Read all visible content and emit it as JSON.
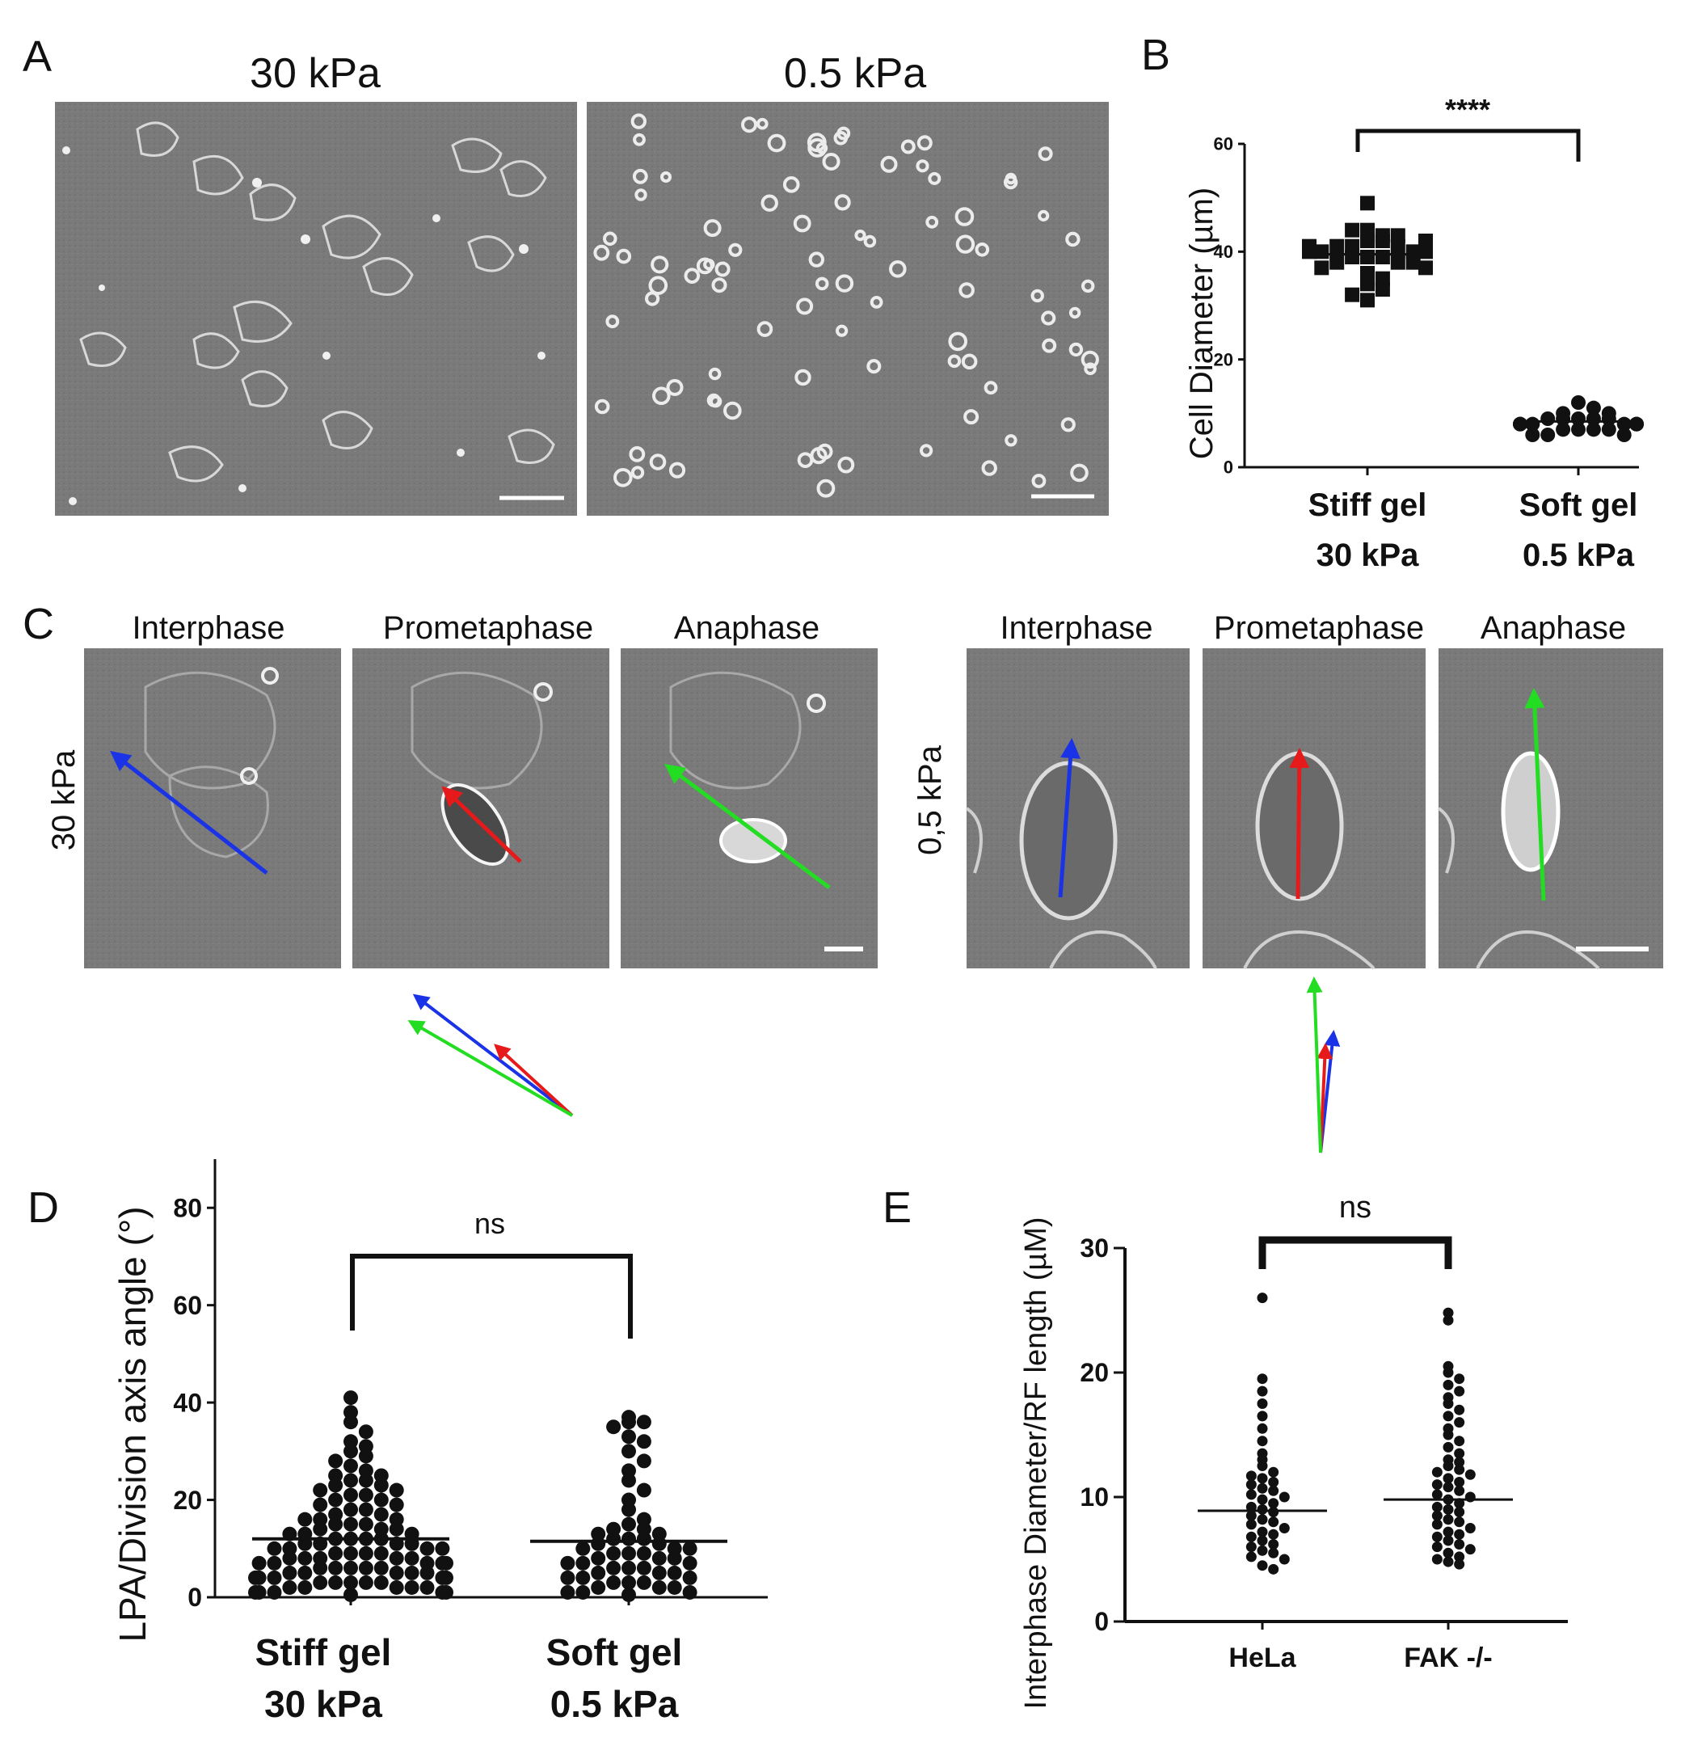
{
  "panels": {
    "A": {
      "letter": "A",
      "titles": [
        "30 kPa",
        "0.5 kPa"
      ]
    },
    "B": {
      "letter": "B",
      "significance": "****",
      "ylabel": "Cell Diameter (µm)",
      "yticks": [
        "0",
        "20",
        "40",
        "60"
      ],
      "groups": [
        [
          "Stiff gel",
          "30 kPa"
        ],
        [
          "Soft gel",
          "0.5 kPa"
        ]
      ]
    },
    "C": {
      "letter": "C",
      "phases": [
        "Interphase",
        "Prometaphase",
        "Anaphase"
      ],
      "row_labels": [
        "30 kPa",
        "0,5 kPa"
      ],
      "arrow_colors": {
        "interphase": "#1a33e6",
        "prometaphase": "#e61a1a",
        "anaphase": "#22dd22"
      }
    },
    "D": {
      "letter": "D",
      "significance": "ns",
      "ylabel": "LPA/Division axis angle (°)",
      "yticks": [
        "0",
        "20",
        "40",
        "60",
        "80"
      ],
      "groups": [
        [
          "Stiff gel",
          "30 kPa"
        ],
        [
          "Soft gel",
          "0.5 kPa"
        ]
      ]
    },
    "E": {
      "letter": "E",
      "significance": "ns",
      "ylabel": "Interphase Diameter/RF length (µM)",
      "yticks": [
        "0",
        "10",
        "20",
        "30"
      ],
      "groups": [
        "HeLa",
        "FAK -/-"
      ]
    }
  },
  "chart_data": [
    {
      "panel": "B",
      "type": "scatter",
      "ylabel": "Cell Diameter (µm)",
      "ylim": [
        0,
        60
      ],
      "categories": [
        "Stiff gel 30 kPa",
        "Soft gel 0.5 kPa"
      ],
      "means": [
        39.5,
        8.5
      ],
      "significance": "****",
      "series": [
        {
          "values": [
            44,
            43,
            42,
            42,
            41,
            41,
            41,
            40,
            40,
            40,
            40,
            39,
            39,
            39,
            38,
            38,
            38,
            37,
            37,
            36,
            35,
            34,
            33,
            32,
            31,
            49,
            44,
            43,
            42,
            41
          ]
        },
        {
          "values": [
            12,
            11,
            10,
            10,
            9,
            9,
            9,
            9,
            9,
            8,
            8,
            8,
            8,
            8,
            8,
            8,
            8,
            7,
            7,
            7,
            7,
            6,
            6,
            6
          ]
        }
      ]
    },
    {
      "panel": "D",
      "type": "scatter",
      "ylabel": "LPA/Division axis angle (°)",
      "ylim": [
        0,
        90
      ],
      "categories": [
        "Stiff gel 30 kPa",
        "Soft gel 0.5 kPa"
      ],
      "means": [
        12,
        11.5
      ],
      "significance": "ns",
      "series": [
        {
          "values": [
            41,
            38,
            36,
            34,
            32,
            31,
            30,
            29,
            28,
            27,
            26,
            25,
            25,
            24,
            24,
            23,
            23,
            22,
            22,
            21,
            21,
            20,
            20,
            19,
            19,
            18,
            18,
            17,
            17,
            16,
            16,
            16,
            15,
            15,
            15,
            14,
            14,
            14,
            13,
            13,
            13,
            12,
            12,
            12,
            12,
            11,
            11,
            11,
            11,
            10,
            10,
            10,
            10,
            9,
            9,
            9,
            9,
            8,
            8,
            8,
            8,
            8,
            7,
            7,
            7,
            7,
            7,
            6,
            6,
            6,
            6,
            6,
            5,
            5,
            5,
            5,
            5,
            4,
            4,
            4,
            4,
            4,
            3,
            3,
            3,
            3,
            3,
            2,
            2,
            2,
            2,
            2,
            1,
            1,
            1,
            1,
            1,
            0.5
          ]
        },
        {
          "values": [
            37,
            36,
            36,
            35,
            33,
            32,
            30,
            28,
            26,
            24,
            22,
            20,
            18,
            16,
            15,
            14,
            14,
            13,
            13,
            12,
            12,
            12,
            11,
            11,
            10,
            10,
            10,
            9,
            9,
            9,
            8,
            8,
            8,
            7,
            7,
            7,
            6,
            6,
            6,
            5,
            5,
            5,
            4,
            4,
            4,
            3,
            3,
            3,
            2,
            2,
            2,
            1,
            1,
            1,
            0.5
          ]
        }
      ]
    },
    {
      "panel": "E",
      "type": "scatter",
      "ylabel": "Interphase Diameter/RF length (µM)",
      "ylim": [
        0,
        30
      ],
      "categories": [
        "HeLa",
        "FAK -/-"
      ],
      "means": [
        8.9,
        9.8
      ],
      "significance": "ns",
      "series": [
        {
          "values": [
            26,
            19.5,
            18.5,
            17.5,
            16.5,
            15.5,
            14.5,
            13.5,
            13,
            12.5,
            12,
            11.7,
            11.5,
            11.2,
            11,
            10.7,
            10.5,
            10.2,
            10,
            9.8,
            9.5,
            9.2,
            9,
            8.8,
            8.5,
            8.2,
            8,
            7.8,
            7.5,
            7.2,
            7,
            6.8,
            6.5,
            6.2,
            6,
            5.7,
            5.5,
            5.2,
            5,
            4.5,
            4.2
          ]
        },
        {
          "values": [
            24.8,
            24.2,
            20.5,
            20,
            19.5,
            19,
            18.5,
            18,
            17.5,
            17,
            16.5,
            16,
            15.5,
            15,
            14.5,
            14,
            13.5,
            13,
            12.8,
            12.5,
            12.2,
            12,
            11.8,
            11.5,
            11.2,
            11,
            10.8,
            10.5,
            10.2,
            10,
            9.8,
            9.5,
            9.2,
            9,
            8.8,
            8.5,
            8.2,
            8,
            7.8,
            7.5,
            7.2,
            7,
            6.8,
            6.5,
            6.2,
            6,
            5.8,
            5.5,
            5.2,
            5,
            4.8,
            4.6
          ]
        }
      ]
    }
  ]
}
